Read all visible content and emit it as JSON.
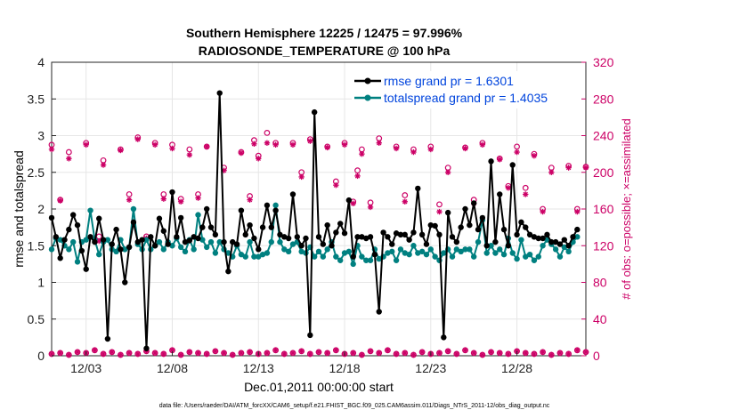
{
  "chart_data": {
    "type": "line",
    "title_line1": "Southern Hemisphere 12225 / 12475 = 97.996%",
    "title_line2": "RADIOSONDE_TEMPERATURE @ 100 hPa",
    "xlabel": "Dec.01,2011 00:00:00 start",
    "ylabel": "rmse and totalspread",
    "ylabel_right": "# of obs: o=possible; ×=assimilated",
    "footer": "data file: /Users/raeder/DAI/ATM_forcXX/CAM6_setup/f.e21.FHIST_BGC.f09_025.CAM6assim.011/Diags_NTrS_2011-12/obs_diag_output.nc",
    "xlim": [
      1,
      32
    ],
    "ylim": [
      0,
      4
    ],
    "ylim_right": [
      0,
      320
    ],
    "x_ticks": [
      {
        "v": 3,
        "label": "12/03"
      },
      {
        "v": 8,
        "label": "12/08"
      },
      {
        "v": 13,
        "label": "12/13"
      },
      {
        "v": 18,
        "label": "12/18"
      },
      {
        "v": 23,
        "label": "12/23"
      },
      {
        "v": 28,
        "label": "12/28"
      }
    ],
    "y_ticks": [
      "0",
      "0.5",
      "1",
      "1.5",
      "2",
      "2.5",
      "3",
      "3.5",
      "4"
    ],
    "y_ticks_right": [
      "0",
      "40",
      "80",
      "120",
      "160",
      "200",
      "240",
      "280",
      "320"
    ],
    "legend": [
      {
        "label": "rmse grand pr = 1.6301",
        "color": "#000000"
      },
      {
        "label": "totalspread grand pr = 1.4035",
        "color": "#008080"
      }
    ],
    "colors": {
      "rmse": "#000000",
      "spread": "#008080",
      "obs": "#cc0066"
    },
    "x_start": 1.0,
    "x_step": 0.25,
    "rmse": [
      1.88,
      1.62,
      1.33,
      1.58,
      1.72,
      1.92,
      1.78,
      1.43,
      1.18,
      1.62,
      1.55,
      1.87,
      1.58,
      0.23,
      1.52,
      1.72,
      1.45,
      1.0,
      1.48,
      1.82,
      1.55,
      1.58,
      0.1,
      1.62,
      1.5,
      1.87,
      1.7,
      1.52,
      2.23,
      1.62,
      1.88,
      1.55,
      1.57,
      1.62,
      1.6,
      1.75,
      2.0,
      1.75,
      1.65,
      3.58,
      1.55,
      1.15,
      1.55,
      1.52,
      1.98,
      1.65,
      1.78,
      1.6,
      1.45,
      1.75,
      2.05,
      1.75,
      1.98,
      1.65,
      1.62,
      1.6,
      2.2,
      1.62,
      1.5,
      1.6,
      0.28,
      3.32,
      1.62,
      1.52,
      1.78,
      1.5,
      1.68,
      1.8,
      1.67,
      2.12,
      1.35,
      1.62,
      1.62,
      1.6,
      1.62,
      1.38,
      0.6,
      1.68,
      1.62,
      1.52,
      1.67,
      1.65,
      1.65,
      1.58,
      1.68,
      2.28,
      1.65,
      1.52,
      1.78,
      1.77,
      1.65,
      0.25,
      1.95,
      1.62,
      1.55,
      1.75,
      2.0,
      1.78,
      2.08,
      1.72,
      1.88,
      1.5,
      2.65,
      1.55,
      2.2,
      1.72,
      1.5,
      2.6,
      1.65,
      1.82,
      1.75,
      1.65,
      1.62,
      1.6,
      1.6,
      1.65,
      1.55,
      1.55,
      1.52,
      1.58,
      1.5,
      1.62,
      1.72
    ],
    "spread": [
      1.45,
      1.6,
      1.58,
      1.5,
      1.45,
      1.55,
      1.28,
      1.55,
      1.58,
      1.98,
      1.58,
      1.38,
      1.55,
      1.58,
      1.45,
      1.42,
      1.58,
      1.45,
      1.48,
      2.0,
      1.52,
      1.45,
      1.58,
      1.45,
      1.5,
      1.55,
      1.45,
      1.55,
      1.5,
      1.6,
      1.48,
      1.42,
      1.58,
      1.45,
      1.92,
      1.58,
      1.48,
      1.55,
      1.4,
      1.55,
      1.45,
      1.4,
      1.35,
      1.5,
      1.38,
      1.35,
      1.55,
      1.35,
      1.35,
      1.38,
      1.4,
      1.55,
      2.05,
      1.55,
      1.45,
      1.42,
      1.52,
      1.55,
      1.42,
      1.4,
      1.48,
      1.35,
      1.42,
      1.35,
      1.45,
      1.55,
      1.35,
      1.3,
      1.4,
      1.42,
      1.25,
      1.5,
      1.35,
      1.3,
      1.3,
      1.45,
      1.32,
      1.35,
      1.4,
      1.42,
      1.3,
      1.45,
      1.4,
      1.38,
      1.5,
      1.4,
      1.42,
      1.38,
      1.45,
      1.35,
      1.3,
      1.4,
      1.45,
      1.35,
      1.45,
      1.42,
      1.45,
      1.45,
      1.35,
      1.55,
      1.85,
      1.4,
      1.5,
      1.4,
      1.45,
      1.38,
      1.6,
      1.4,
      1.32,
      1.58,
      1.35,
      1.38,
      1.3,
      1.35,
      1.5,
      1.58,
      1.52,
      1.45,
      1.35,
      1.48,
      1.42,
      1.55,
      1.62
    ],
    "obs_possible": [
      [
        1,
        230
      ],
      [
        1.5,
        170
      ],
      [
        2,
        222
      ],
      [
        3,
        232
      ],
      [
        3.75,
        130
      ],
      [
        4,
        213
      ],
      [
        5,
        225
      ],
      [
        5.5,
        176
      ],
      [
        6,
        238
      ],
      [
        6.5,
        130
      ],
      [
        7,
        232
      ],
      [
        7.5,
        176
      ],
      [
        8,
        230
      ],
      [
        8.5,
        171
      ],
      [
        9,
        225
      ],
      [
        9.5,
        176
      ],
      [
        10,
        228
      ],
      [
        11,
        205
      ],
      [
        12,
        222
      ],
      [
        12.5,
        174
      ],
      [
        12.75,
        235
      ],
      [
        13,
        218
      ],
      [
        13.5,
        243
      ],
      [
        14,
        232
      ],
      [
        15,
        232
      ],
      [
        15.5,
        200
      ],
      [
        16,
        236
      ],
      [
        17,
        228
      ],
      [
        17.5,
        190
      ],
      [
        18,
        232
      ],
      [
        18.5,
        168
      ],
      [
        18.75,
        202
      ],
      [
        19,
        225
      ],
      [
        19.5,
        167
      ],
      [
        20,
        237
      ],
      [
        21,
        228
      ],
      [
        21.5,
        175
      ],
      [
        22,
        225
      ],
      [
        23,
        228
      ],
      [
        23.5,
        165
      ],
      [
        24,
        205
      ],
      [
        25,
        227
      ],
      [
        25.5,
        170
      ],
      [
        26,
        232
      ],
      [
        27,
        215
      ],
      [
        27.5,
        185
      ],
      [
        28,
        228
      ],
      [
        28.5,
        183
      ],
      [
        29,
        220
      ],
      [
        29.5,
        160
      ],
      [
        30,
        205
      ],
      [
        31,
        207
      ],
      [
        31.5,
        160
      ],
      [
        32,
        206
      ]
    ],
    "obs_assimilated": [
      [
        1,
        225
      ],
      [
        1.5,
        169
      ],
      [
        2,
        215
      ],
      [
        3,
        230
      ],
      [
        3.75,
        125
      ],
      [
        4,
        208
      ],
      [
        5,
        224
      ],
      [
        5.5,
        170
      ],
      [
        6,
        236
      ],
      [
        6.5,
        128
      ],
      [
        7,
        230
      ],
      [
        7.5,
        171
      ],
      [
        8,
        226
      ],
      [
        8.5,
        168
      ],
      [
        9,
        219
      ],
      [
        9.5,
        172
      ],
      [
        10,
        228
      ],
      [
        11,
        202
      ],
      [
        12,
        221
      ],
      [
        12.5,
        170
      ],
      [
        12.75,
        231
      ],
      [
        13,
        215
      ],
      [
        13.5,
        232
      ],
      [
        14,
        230
      ],
      [
        15,
        230
      ],
      [
        15.5,
        195
      ],
      [
        16,
        234
      ],
      [
        17,
        227
      ],
      [
        17.5,
        186
      ],
      [
        18,
        230
      ],
      [
        18.5,
        166
      ],
      [
        18.75,
        196
      ],
      [
        19,
        220
      ],
      [
        19.5,
        162
      ],
      [
        20,
        232
      ],
      [
        21,
        226
      ],
      [
        21.5,
        168
      ],
      [
        22,
        222
      ],
      [
        23,
        225
      ],
      [
        23.5,
        157
      ],
      [
        24,
        200
      ],
      [
        25,
        226
      ],
      [
        25.5,
        166
      ],
      [
        26,
        230
      ],
      [
        27,
        214
      ],
      [
        27.5,
        183
      ],
      [
        28,
        222
      ],
      [
        28.5,
        176
      ],
      [
        29,
        218
      ],
      [
        29.5,
        157
      ],
      [
        30,
        200
      ],
      [
        31,
        205
      ],
      [
        31.5,
        157
      ],
      [
        32,
        205
      ]
    ],
    "obs_low_x": [
      1,
      1.5,
      2,
      2.5,
      3,
      3.5,
      4,
      4.5,
      5,
      5.5,
      6,
      6.5,
      7,
      7.5,
      8,
      8.5,
      9,
      9.5,
      10,
      10.5,
      11,
      11.5,
      12,
      12.5,
      13,
      13.5,
      14,
      14.5,
      15,
      15.5,
      16,
      16.5,
      17,
      17.5,
      18,
      18.5,
      19,
      19.5,
      20,
      20.5,
      21,
      21.5,
      22,
      22.5,
      23,
      23.5,
      24,
      24.5,
      25,
      25.5,
      26,
      26.5,
      27,
      27.5,
      28,
      28.5,
      29,
      29.5,
      30,
      30.5,
      31,
      31.5,
      32
    ],
    "obs_low_y": [
      2,
      3,
      1,
      4,
      3,
      6,
      2,
      4,
      1,
      3,
      2,
      5,
      3,
      2,
      6,
      1,
      4,
      3,
      2,
      5,
      3,
      1,
      3,
      4,
      2,
      3,
      6,
      2,
      3,
      5,
      2,
      4,
      3,
      6,
      2,
      3,
      1,
      5,
      3,
      6,
      2,
      3,
      1,
      4,
      2,
      3,
      5,
      2,
      6,
      3,
      1,
      4,
      3,
      2,
      5,
      3,
      2,
      4,
      1,
      3,
      2,
      6,
      4
    ]
  }
}
